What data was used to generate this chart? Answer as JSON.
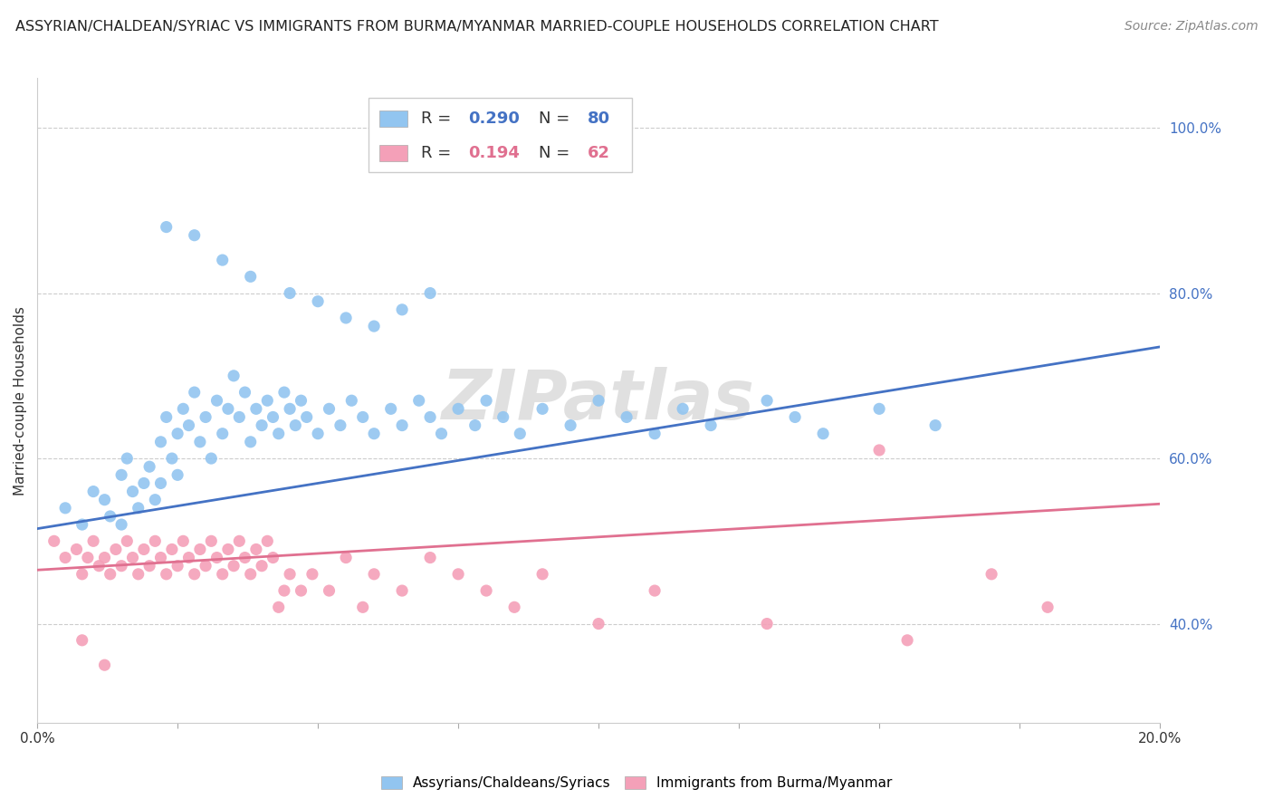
{
  "title": "ASSYRIAN/CHALDEAN/SYRIAC VS IMMIGRANTS FROM BURMA/MYANMAR MARRIED-COUPLE HOUSEHOLDS CORRELATION CHART",
  "source": "Source: ZipAtlas.com",
  "ylabel": "Married-couple Households",
  "legend_blue_R": "0.290",
  "legend_blue_N": "80",
  "legend_pink_R": "0.194",
  "legend_pink_N": "62",
  "legend_blue_label": "Assyrians/Chaldeans/Syriacs",
  "legend_pink_label": "Immigrants from Burma/Myanmar",
  "blue_color": "#92C5F0",
  "pink_color": "#F4A0B8",
  "blue_line_color": "#4472C4",
  "pink_line_color": "#E07090",
  "watermark": "ZIPatlas",
  "blue_scatter_x": [
    0.005,
    0.008,
    0.01,
    0.012,
    0.013,
    0.015,
    0.015,
    0.016,
    0.017,
    0.018,
    0.019,
    0.02,
    0.021,
    0.022,
    0.022,
    0.023,
    0.024,
    0.025,
    0.025,
    0.026,
    0.027,
    0.028,
    0.029,
    0.03,
    0.031,
    0.032,
    0.033,
    0.034,
    0.035,
    0.036,
    0.037,
    0.038,
    0.039,
    0.04,
    0.041,
    0.042,
    0.043,
    0.044,
    0.045,
    0.046,
    0.047,
    0.048,
    0.05,
    0.052,
    0.054,
    0.056,
    0.058,
    0.06,
    0.063,
    0.065,
    0.068,
    0.07,
    0.072,
    0.075,
    0.078,
    0.08,
    0.083,
    0.086,
    0.09,
    0.095,
    0.1,
    0.105,
    0.11,
    0.115,
    0.12,
    0.13,
    0.135,
    0.14,
    0.15,
    0.16,
    0.023,
    0.028,
    0.033,
    0.038,
    0.045,
    0.05,
    0.055,
    0.06,
    0.065,
    0.07
  ],
  "blue_scatter_y": [
    0.54,
    0.52,
    0.56,
    0.55,
    0.53,
    0.58,
    0.52,
    0.6,
    0.56,
    0.54,
    0.57,
    0.59,
    0.55,
    0.62,
    0.57,
    0.65,
    0.6,
    0.63,
    0.58,
    0.66,
    0.64,
    0.68,
    0.62,
    0.65,
    0.6,
    0.67,
    0.63,
    0.66,
    0.7,
    0.65,
    0.68,
    0.62,
    0.66,
    0.64,
    0.67,
    0.65,
    0.63,
    0.68,
    0.66,
    0.64,
    0.67,
    0.65,
    0.63,
    0.66,
    0.64,
    0.67,
    0.65,
    0.63,
    0.66,
    0.64,
    0.67,
    0.65,
    0.63,
    0.66,
    0.64,
    0.67,
    0.65,
    0.63,
    0.66,
    0.64,
    0.67,
    0.65,
    0.63,
    0.66,
    0.64,
    0.67,
    0.65,
    0.63,
    0.66,
    0.64,
    0.88,
    0.87,
    0.84,
    0.82,
    0.8,
    0.79,
    0.77,
    0.76,
    0.78,
    0.8
  ],
  "pink_scatter_x": [
    0.003,
    0.005,
    0.007,
    0.008,
    0.009,
    0.01,
    0.011,
    0.012,
    0.013,
    0.014,
    0.015,
    0.016,
    0.017,
    0.018,
    0.019,
    0.02,
    0.021,
    0.022,
    0.023,
    0.024,
    0.025,
    0.026,
    0.027,
    0.028,
    0.029,
    0.03,
    0.031,
    0.032,
    0.033,
    0.034,
    0.035,
    0.036,
    0.037,
    0.038,
    0.039,
    0.04,
    0.041,
    0.042,
    0.043,
    0.044,
    0.045,
    0.047,
    0.049,
    0.052,
    0.055,
    0.058,
    0.06,
    0.065,
    0.07,
    0.075,
    0.08,
    0.085,
    0.09,
    0.1,
    0.11,
    0.13,
    0.155,
    0.17,
    0.18,
    0.15,
    0.008,
    0.012
  ],
  "pink_scatter_y": [
    0.5,
    0.48,
    0.49,
    0.46,
    0.48,
    0.5,
    0.47,
    0.48,
    0.46,
    0.49,
    0.47,
    0.5,
    0.48,
    0.46,
    0.49,
    0.47,
    0.5,
    0.48,
    0.46,
    0.49,
    0.47,
    0.5,
    0.48,
    0.46,
    0.49,
    0.47,
    0.5,
    0.48,
    0.46,
    0.49,
    0.47,
    0.5,
    0.48,
    0.46,
    0.49,
    0.47,
    0.5,
    0.48,
    0.42,
    0.44,
    0.46,
    0.44,
    0.46,
    0.44,
    0.48,
    0.42,
    0.46,
    0.44,
    0.48,
    0.46,
    0.44,
    0.42,
    0.46,
    0.4,
    0.44,
    0.4,
    0.38,
    0.46,
    0.42,
    0.61,
    0.38,
    0.35
  ],
  "blue_line_x": [
    0.0,
    0.2
  ],
  "blue_line_y": [
    0.515,
    0.735
  ],
  "pink_line_x": [
    0.0,
    0.2
  ],
  "pink_line_y": [
    0.465,
    0.545
  ],
  "xlim": [
    0.0,
    0.2
  ],
  "ylim": [
    0.28,
    1.06
  ],
  "xticks": [
    0.0,
    0.025,
    0.05,
    0.075,
    0.1,
    0.125,
    0.15,
    0.175,
    0.2
  ],
  "xtick_labels": [
    "0.0%",
    "",
    "",
    "",
    "",
    "",
    "",
    "",
    "20.0%"
  ],
  "yticks": [
    0.4,
    0.6,
    0.8,
    1.0
  ],
  "ytick_labels": [
    "40.0%",
    "60.0%",
    "80.0%",
    "100.0%"
  ],
  "background_color": "#FFFFFF",
  "grid_color": "#CCCCCC",
  "title_color": "#222222",
  "watermark_color": "#DDDDDD",
  "watermark_fontsize": 55,
  "title_fontsize": 11.5,
  "source_fontsize": 10,
  "axis_label_fontsize": 11,
  "tick_label_color_y": "#4472C4",
  "legend_text_color": "#333333",
  "legend_fontsize": 13
}
